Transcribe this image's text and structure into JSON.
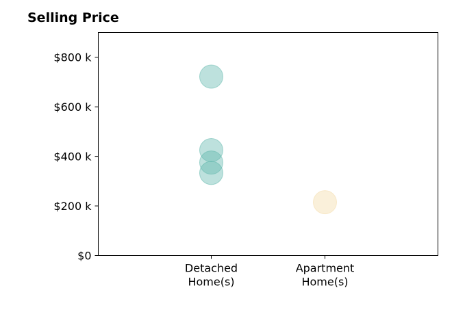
{
  "chart_data": {
    "type": "scatter",
    "title": "Selling Price",
    "xlabel": "",
    "ylabel": "",
    "categories": [
      "Detached\nHome(s)",
      "Apartment\nHome(s)"
    ],
    "ylim": [
      0,
      900000
    ],
    "yticks": [
      0,
      200000,
      400000,
      600000,
      800000
    ],
    "ytick_labels": [
      "$0",
      "$200 k",
      "$400 k",
      "$600 k",
      "$800 k"
    ],
    "grid": false,
    "series": [
      {
        "category": "Detached\nHome(s)",
        "color": "#5bb5a9",
        "values": [
          722000,
          425000,
          375000,
          333000
        ]
      },
      {
        "category": "Apartment\nHome(s)",
        "color": "#f3d9a3",
        "values": [
          215000
        ]
      }
    ]
  }
}
